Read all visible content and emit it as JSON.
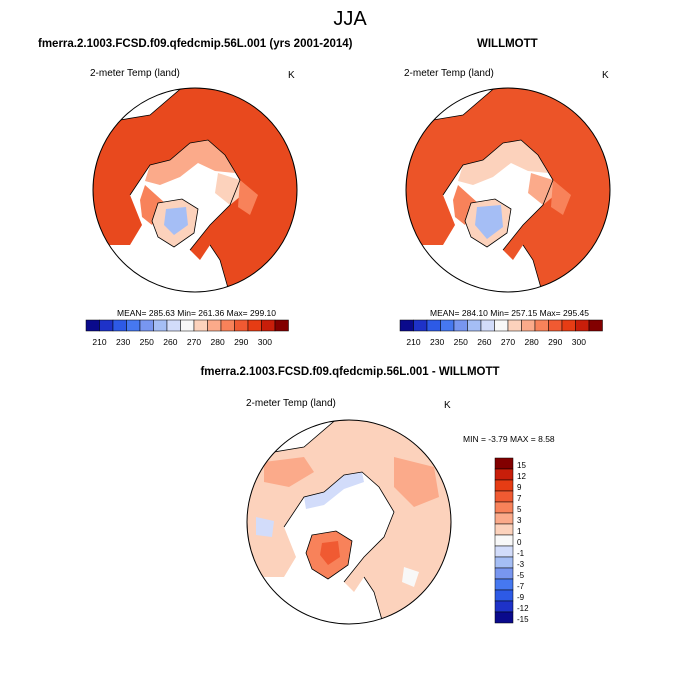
{
  "figure": {
    "title": "JJA",
    "panels": [
      {
        "title": "fmerra.2.1003.FCSD.f09.qfedcmip.56L.001 (yrs 2001-2014)",
        "variable": "2-meter Temp (land)",
        "units": "K",
        "stats": "MEAN= 285.63  Min= 261.36  Max= 299.10"
      },
      {
        "title": "WILLMOTT",
        "variable": "2-meter Temp (land)",
        "units": "K",
        "stats": "MEAN= 284.10  Min= 257.15  Max= 295.45"
      },
      {
        "title": "fmerra.2.1003.FCSD.f09.qfedcmip.56L.001 - WILLMOTT",
        "variable": "2-meter Temp (land)",
        "units": "K",
        "stats": "MIN =  -3.79 MAX =   8.58"
      }
    ]
  },
  "colorbars": {
    "absolute": {
      "colors": [
        "#0a0a8c",
        "#1e32c8",
        "#2d5ae6",
        "#4678f0",
        "#7896f0",
        "#a5bef5",
        "#d2dcfa",
        "#f8f8f8",
        "#fcd2bc",
        "#fbaa8a",
        "#f8825a",
        "#f05a32",
        "#e63c14",
        "#c81e0a",
        "#820000"
      ],
      "labels": [
        "210",
        "230",
        "250",
        "260",
        "270",
        "280",
        "290",
        "300"
      ]
    },
    "difference": {
      "colors": [
        "#820000",
        "#c81e0a",
        "#e63c14",
        "#f05a32",
        "#f8825a",
        "#fbaa8a",
        "#fcd2bc",
        "#f8f8f8",
        "#d2dcfa",
        "#a5bef5",
        "#7896f0",
        "#4678f0",
        "#2d5ae6",
        "#1e32c8",
        "#0a0a8c"
      ],
      "labels": [
        "15",
        "12",
        "9",
        "7",
        "5",
        "3",
        "1",
        "0",
        "-1",
        "-3",
        "-5",
        "-7",
        "-9",
        "-12",
        "-15"
      ]
    }
  },
  "chart_data": [
    {
      "type": "heatmap",
      "title": "fmerra.2.1003.FCSD.f09.qfedcmip.56L.001 (yrs 2001-2014)",
      "projection": "polar stereographic (north)",
      "variable": "2-meter Temp (land)",
      "units": "K",
      "mean": 285.63,
      "min": 261.36,
      "max": 299.1,
      "colorbar_levels": [
        210,
        230,
        250,
        260,
        270,
        280,
        290,
        300
      ]
    },
    {
      "type": "heatmap",
      "title": "WILLMOTT",
      "projection": "polar stereographic (north)",
      "variable": "2-meter Temp (land)",
      "units": "K",
      "mean": 284.1,
      "min": 257.15,
      "max": 295.45,
      "colorbar_levels": [
        210,
        230,
        250,
        260,
        270,
        280,
        290,
        300
      ]
    },
    {
      "type": "heatmap",
      "title": "fmerra.2.1003.FCSD.f09.qfedcmip.56L.001 - WILLMOTT",
      "projection": "polar stereographic (north)",
      "variable": "2-meter Temp (land)",
      "units": "K",
      "min": -3.79,
      "max": 8.58,
      "colorbar_levels": [
        15,
        12,
        9,
        7,
        5,
        3,
        1,
        0,
        -1,
        -3,
        -5,
        -7,
        -9,
        -12,
        -15
      ]
    }
  ]
}
